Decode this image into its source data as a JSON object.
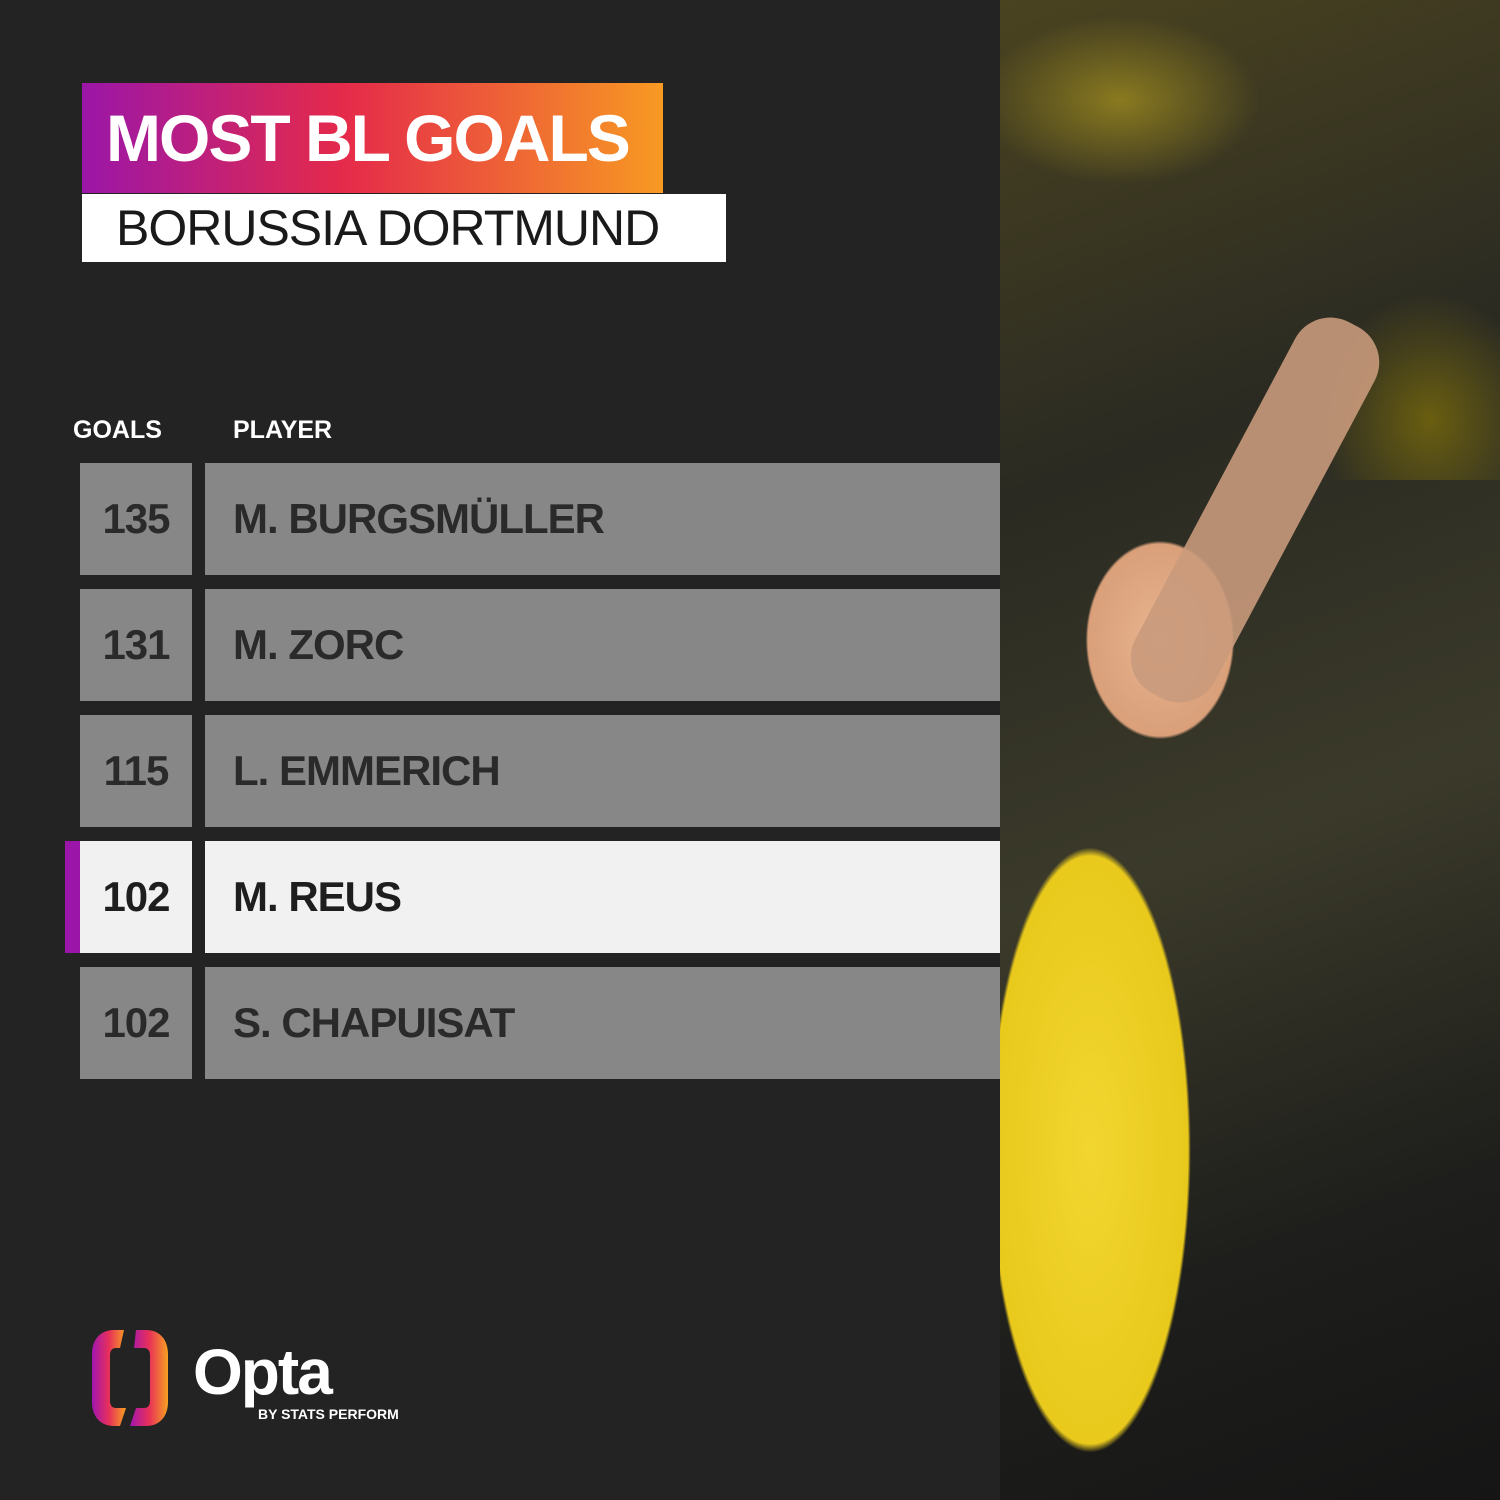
{
  "title": "MOST BL GOALS",
  "subtitle": "BORUSSIA DORTMUND",
  "headers": {
    "goals": "GOALS",
    "player": "PLAYER"
  },
  "rows": [
    {
      "goals": "135",
      "player": "M. BURGSMÜLLER"
    },
    {
      "goals": "131",
      "player": "M. ZORC"
    },
    {
      "goals": "115",
      "player": "L. EMMERICH"
    },
    {
      "goals": "102",
      "player": "M. REUS"
    },
    {
      "goals": "102",
      "player": "S. CHAPUISAT"
    }
  ],
  "highlighted_player": "M. REUS",
  "colors": {
    "background": "#232323",
    "row": "#878787",
    "highlight": "#f1f1f1",
    "accent": "#9b16a8"
  },
  "logo": {
    "brand": "Opta",
    "tagline": "BY STATS PERFORM"
  }
}
